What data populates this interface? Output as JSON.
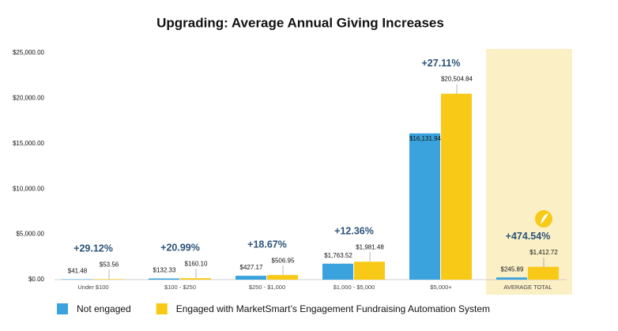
{
  "chart_data": {
    "type": "bar",
    "title": "Upgrading: Average Annual Giving Increases",
    "categories": [
      "Under $100",
      "$100 - $250",
      "$250 - $1,000",
      "$1,000 - $5,000",
      "$5,000+",
      "AVERAGE TOTAL"
    ],
    "series": [
      {
        "name": "Not engaged",
        "color": "#3aa3de",
        "values": [
          41.48,
          132.33,
          427.17,
          1763.52,
          16131.94,
          245.89
        ],
        "value_labels": [
          "$41.48",
          "$132.33",
          "$427.17",
          "$1,763.52",
          "$16,131.94",
          "$245.89"
        ]
      },
      {
        "name": "Engaged with MarketSmart’s Engagement Fundraising Automation System",
        "color": "#f9c918",
        "values": [
          53.56,
          160.1,
          506.95,
          1981.48,
          20504.84,
          1412.72
        ],
        "value_labels": [
          "$53.56",
          "$160.10",
          "$506.95",
          "$1,981.48",
          "$20,504.84",
          "$1,412.72"
        ]
      }
    ],
    "change_labels": [
      "+29.12%",
      "+20.99%",
      "+18.67%",
      "+12.36%",
      "+27.11%",
      "+474.54%"
    ],
    "ylim": [
      0,
      25000
    ],
    "yticks": [
      {
        "value": 0,
        "label": "$0.00"
      },
      {
        "value": 5000,
        "label": "$5,000.00"
      },
      {
        "value": 10000,
        "label": "$10,000.00"
      },
      {
        "value": 15000,
        "label": "$15,000.00"
      },
      {
        "value": 20000,
        "label": "$20,000.00"
      },
      {
        "value": 25000,
        "label": "$25,000.00"
      }
    ],
    "grid": false,
    "legend": "bottom"
  }
}
